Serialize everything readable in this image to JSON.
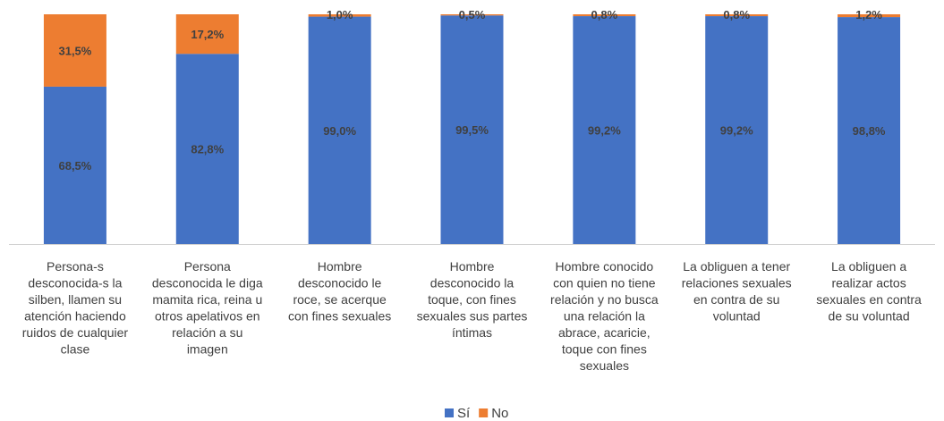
{
  "chart_data": {
    "type": "bar",
    "stacked": true,
    "percent": true,
    "categories": [
      [
        "Persona-s",
        "desconocida-s la",
        "silben, llamen su",
        "atención haciendo",
        "ruidos de cualquier",
        "clase"
      ],
      [
        "Persona",
        "desconocida le diga",
        "mamita rica, reina u",
        "otros apelativos en",
        "relación a su",
        "imagen"
      ],
      [
        "Hombre",
        "desconocido le",
        "roce, se acerque",
        "con fines sexuales"
      ],
      [
        "Hombre",
        "desconocido la",
        "toque, con fines",
        "sexuales sus partes",
        "íntimas"
      ],
      [
        "Hombre conocido",
        "con quien no tiene",
        "relación y no busca",
        "una relación la",
        "abrace, acaricie,",
        "toque con fines",
        "sexuales"
      ],
      [
        "La obliguen a tener",
        "relaciones sexuales",
        "en contra de su",
        "voluntad"
      ],
      [
        "La obliguen a",
        "realizar actos",
        "sexuales en contra",
        "de su voluntad"
      ]
    ],
    "series": [
      {
        "name": "Sí",
        "color": "#4472C4",
        "values": [
          68.5,
          82.8,
          99.0,
          99.5,
          99.2,
          99.2,
          98.8
        ],
        "labels": [
          "68,5%",
          "82,8%",
          "99,0%",
          "99,5%",
          "99,2%",
          "99,2%",
          "98,8%"
        ]
      },
      {
        "name": "No",
        "color": "#ED7D31",
        "values": [
          31.5,
          17.2,
          1.0,
          0.5,
          0.8,
          0.8,
          1.2
        ],
        "labels": [
          "31,5%",
          "17,2%",
          "1,0%",
          "0,5%",
          "0,8%",
          "0,8%",
          "1,2%"
        ]
      }
    ],
    "ylim": [
      0,
      100
    ],
    "grid": false,
    "legend_position": "bottom"
  }
}
